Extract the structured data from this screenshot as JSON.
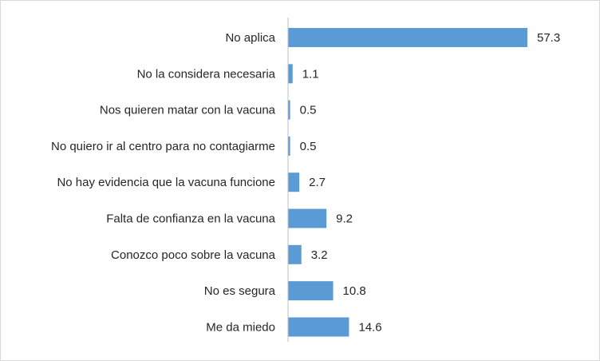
{
  "chart_data": {
    "type": "bar",
    "orientation": "horizontal",
    "categories": [
      "No aplica",
      "No la considera necesaria",
      "Nos quieren matar con la vacuna",
      "No quiero ir al centro para no contagiarme",
      "No hay evidencia  que la vacuna funcione",
      "Falta de confianza en la vacuna",
      "Conozco poco sobre la vacuna",
      "No es segura",
      "Me da miedo"
    ],
    "values": [
      57.3,
      1.1,
      0.5,
      0.5,
      2.7,
      9.2,
      3.2,
      10.8,
      14.6
    ],
    "value_labels": [
      "57.3",
      "1.1",
      "0.5",
      "0.5",
      "2.7",
      "9.2",
      "3.2",
      "10.8",
      "14.6"
    ],
    "xlim": [
      0,
      60
    ],
    "bar_color": "#5b9bd5",
    "axis_color": "#bfbfbf",
    "text_color": "#262626",
    "grid": false,
    "legend": "none"
  }
}
